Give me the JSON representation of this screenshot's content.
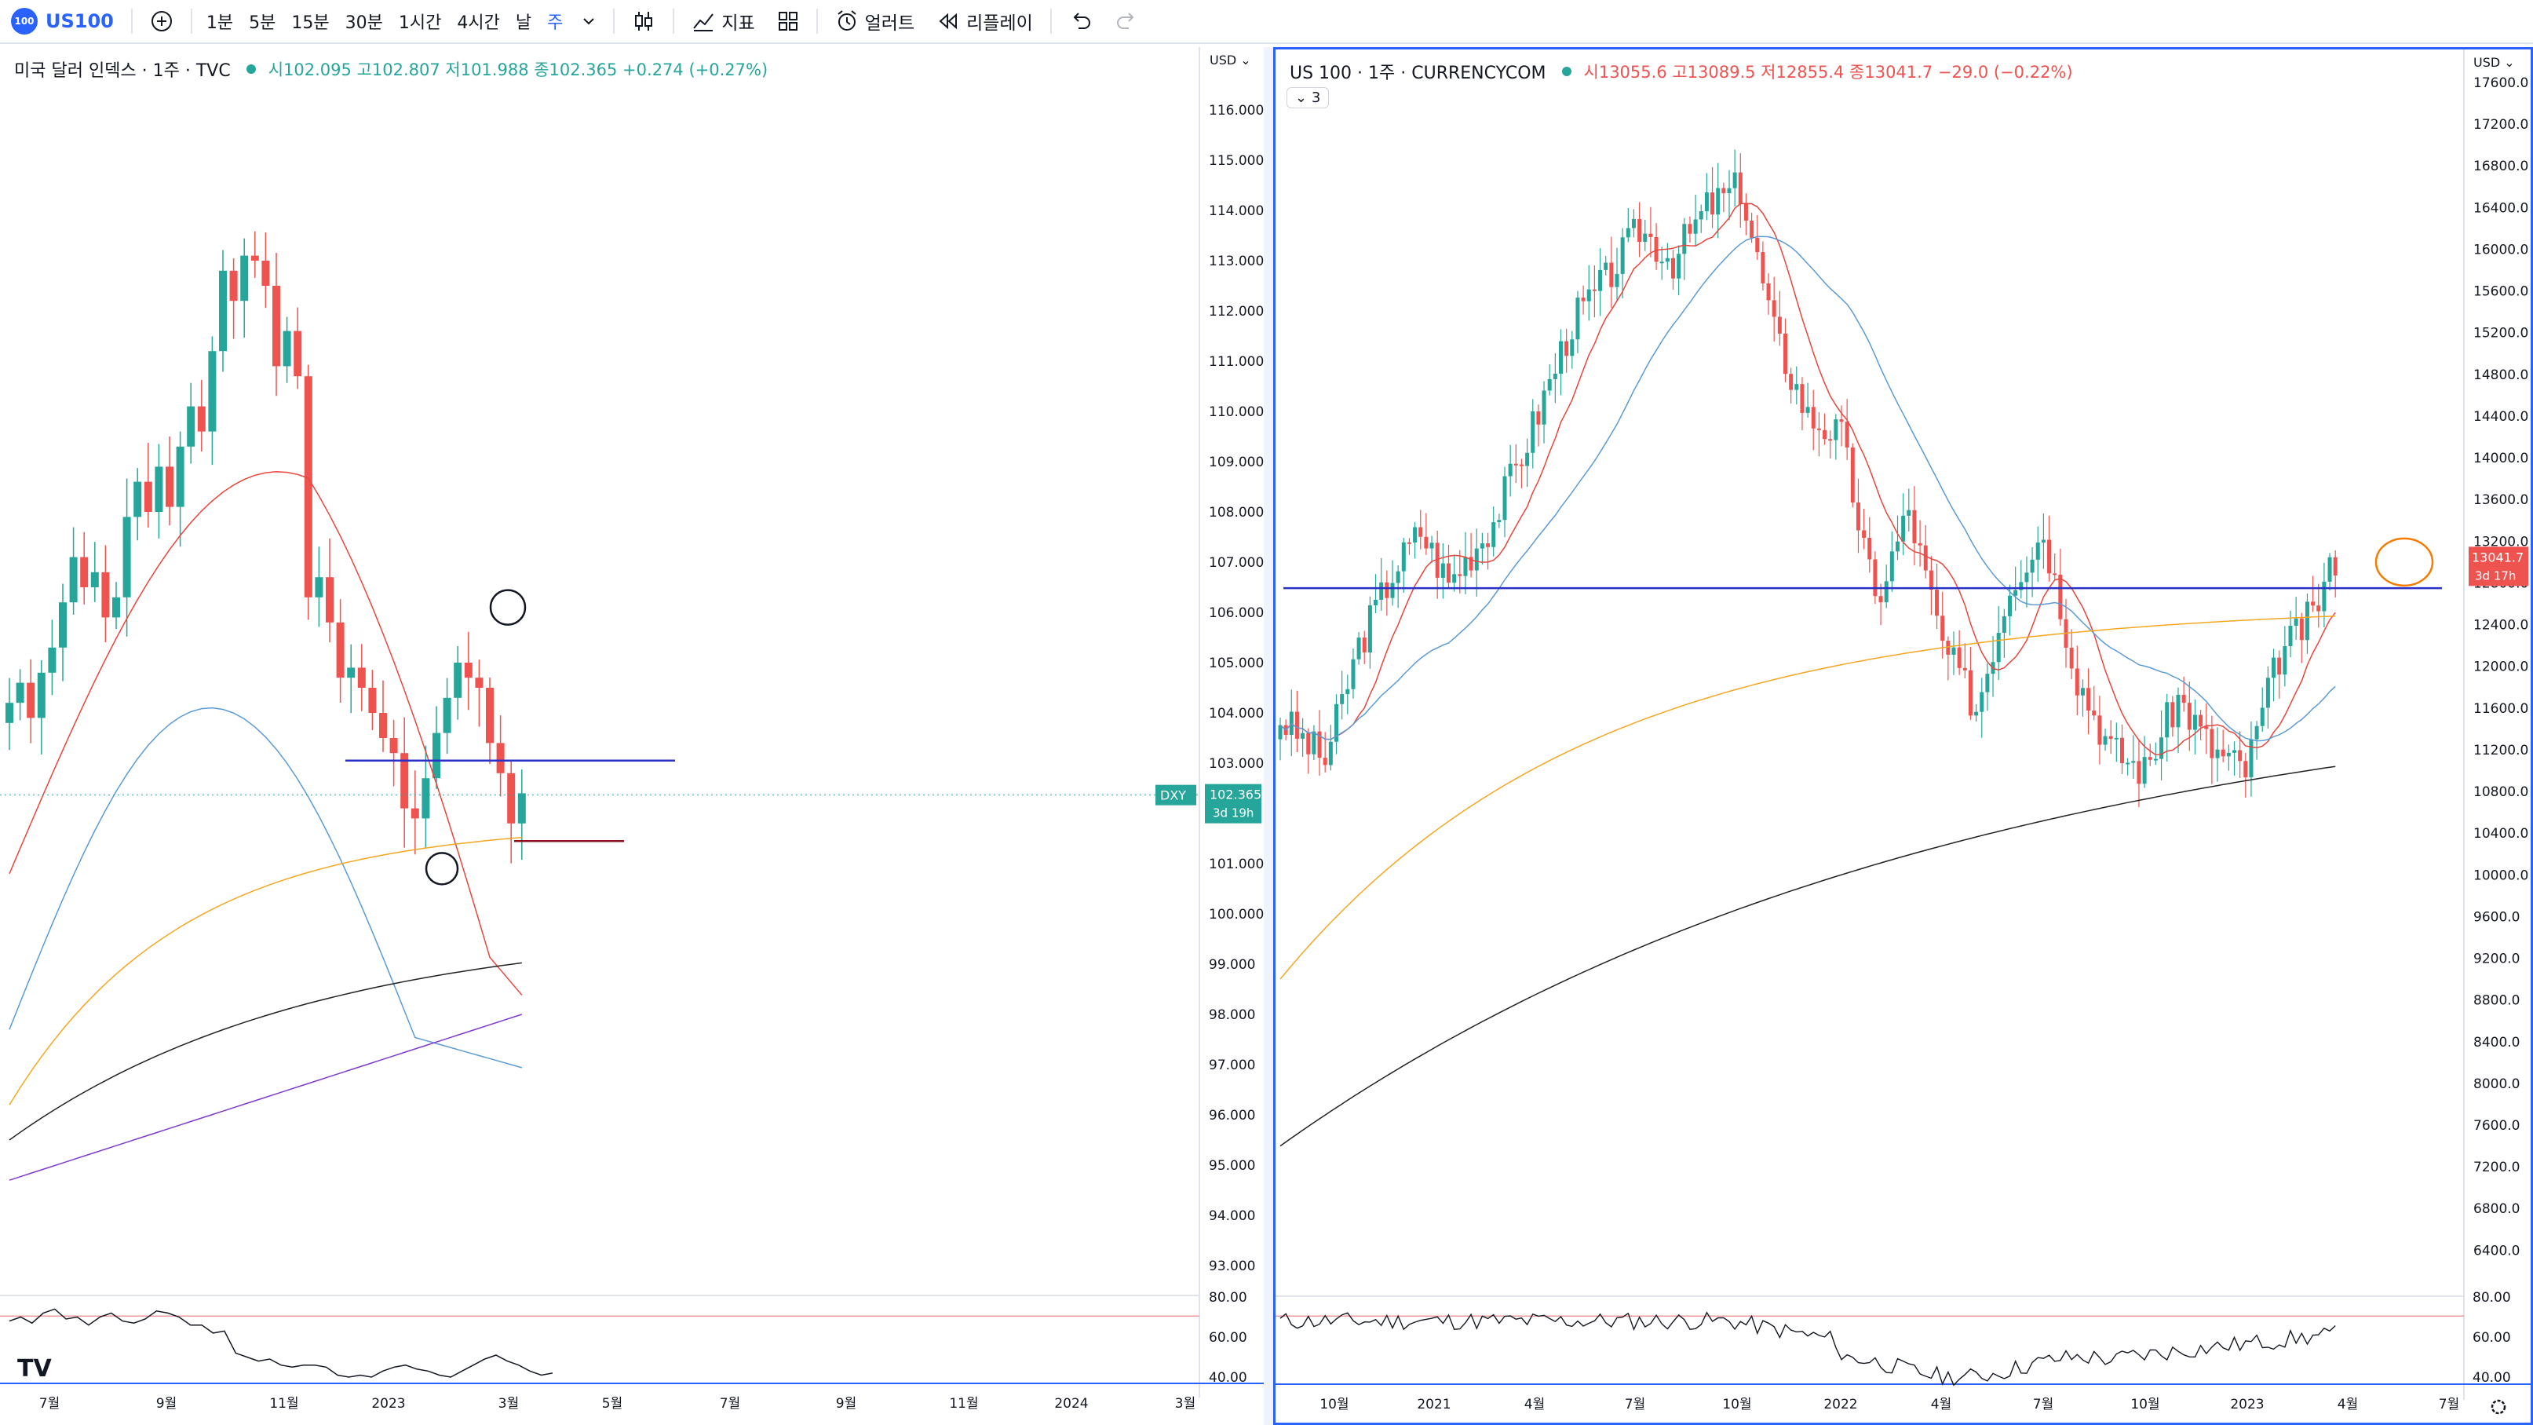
{
  "toolbar": {
    "symbol_badge": "100",
    "symbol": "US100",
    "timeframes": [
      "1분",
      "5분",
      "15분",
      "30분",
      "1시간",
      "4시간",
      "날",
      "주"
    ],
    "active_timeframe": "주",
    "indicators_label": "지표",
    "alert_label": "얼러트",
    "replay_label": "리플레이",
    "icons": [
      "add-symbol-icon",
      "chevron-down-icon",
      "candle-style-icon",
      "indicators-icon",
      "layout-icon",
      "alert-icon",
      "replay-icon",
      "undo-icon",
      "redo-icon"
    ]
  },
  "left_pane": {
    "title": "미국 달러 인덱스 · 1주 · TVC",
    "ohlc": "시102.095  고102.807  저101.988  종102.365  +0.274 (+0.27%)",
    "currency": "USD",
    "price_ticks": [
      "116.000",
      "115.000",
      "114.000",
      "113.000",
      "112.000",
      "111.000",
      "110.000",
      "109.000",
      "108.000",
      "107.000",
      "106.000",
      "105.000",
      "104.000",
      "103.000",
      "101.000",
      "100.000",
      "99.000",
      "98.000",
      "97.000",
      "96.000",
      "95.000",
      "94.000",
      "93.000"
    ],
    "rsi_ticks": [
      "80.00",
      "60.00",
      "40.00"
    ],
    "time_ticks": [
      "7월",
      "9월",
      "11월",
      "2023",
      "3월",
      "5월",
      "7월",
      "9월",
      "11월",
      "2024",
      "3월"
    ],
    "last_price_tag": "DXY",
    "last_price": "102.365",
    "countdown": "3d 19h",
    "logo": "TV"
  },
  "right_pane": {
    "title": "US 100 · 1주 · CURRENCYCOM",
    "ohlc": "시13055.6  고13089.5  저12855.4  종13041.7  −29.0 (−0.22%)",
    "indicator_count": "3",
    "currency": "USD",
    "price_ticks": [
      "17600.0",
      "17200.0",
      "16800.0",
      "16400.0",
      "16000.0",
      "15600.0",
      "15200.0",
      "14800.0",
      "14400.0",
      "14000.0",
      "13600.0",
      "13200.0",
      "12800.0",
      "12400.0",
      "12000.0",
      "11600.0",
      "11200.0",
      "10800.0",
      "10400.0",
      "10000.0",
      "9600.0",
      "9200.0",
      "8800.0",
      "8400.0",
      "8000.0",
      "7600.0",
      "7200.0",
      "6800.0",
      "6400.0"
    ],
    "rsi_ticks": [
      "80.00",
      "60.00",
      "40.00"
    ],
    "time_ticks": [
      "10월",
      "2021",
      "4월",
      "7월",
      "10월",
      "2022",
      "4월",
      "7월",
      "10월",
      "2023",
      "4월",
      "7월"
    ],
    "last_price": "13041.7",
    "countdown": "3d 17h",
    "icons": [
      "settings-gear-icon"
    ]
  },
  "colors": {
    "up": "#26a69a",
    "down": "#ef5350",
    "accent": "#2962ff",
    "ema_fast": "#e8453c",
    "ema_mid": "#5b9bd5",
    "ema_slow": "#f5a623",
    "ema_long": "#222222",
    "ema_longest": "#7e3ccf"
  }
}
